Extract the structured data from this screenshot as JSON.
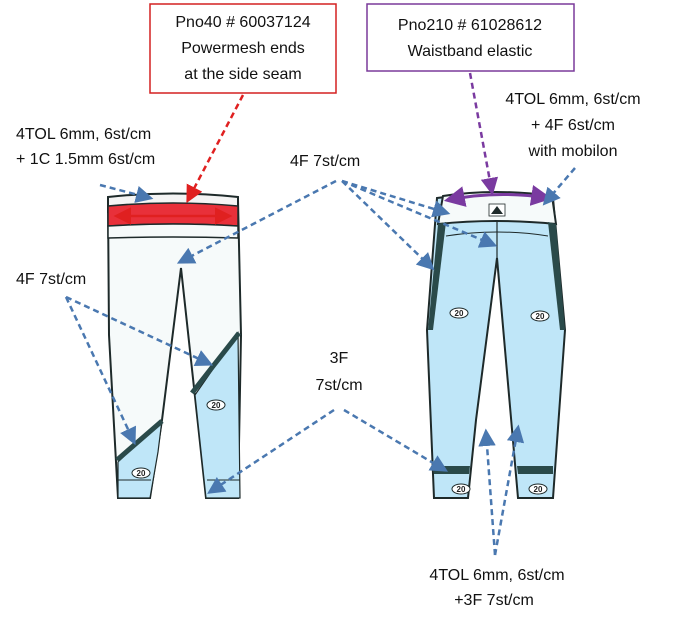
{
  "callouts": {
    "front_part": {
      "line1": "Pno40 # 60037124",
      "line2": "Powermesh ends",
      "line3": "at the side seam"
    },
    "back_part": {
      "line1": "Pno210 # 61028612",
      "line2": "Waistband elastic"
    }
  },
  "labels": {
    "front_waist_line1": "4TOL 6mm, 6st/cm",
    "front_waist_line2": "+ 1C 1.5mm 6st/cm",
    "center_4f": "4F 7st/cm",
    "left_4f": "4F 7st/cm",
    "center_3f_line1": "3F",
    "center_3f_line2": "7st/cm",
    "back_waist_line1": "4TOL 6mm, 6st/cm",
    "back_waist_line2": "+ 4F 6st/cm",
    "back_waist_line3": "with mobilon",
    "bottom_line1": "4TOL 6mm, 6st/cm",
    "bottom_line2": "+3F 7st/cm"
  },
  "badges": {
    "size": "20"
  },
  "colors": {
    "light_blue": "#bfe6f8",
    "white_panel": "#f6fafa",
    "outline": "#1e2a2a",
    "dark_trim": "#2a4a4a",
    "callout_red_border": "#d42020",
    "callout_purple_border": "#7a3a9a",
    "arrow_blue": "#4a78b0",
    "arrow_red": "#e02020",
    "arrow_purple": "#7a3aa0"
  }
}
